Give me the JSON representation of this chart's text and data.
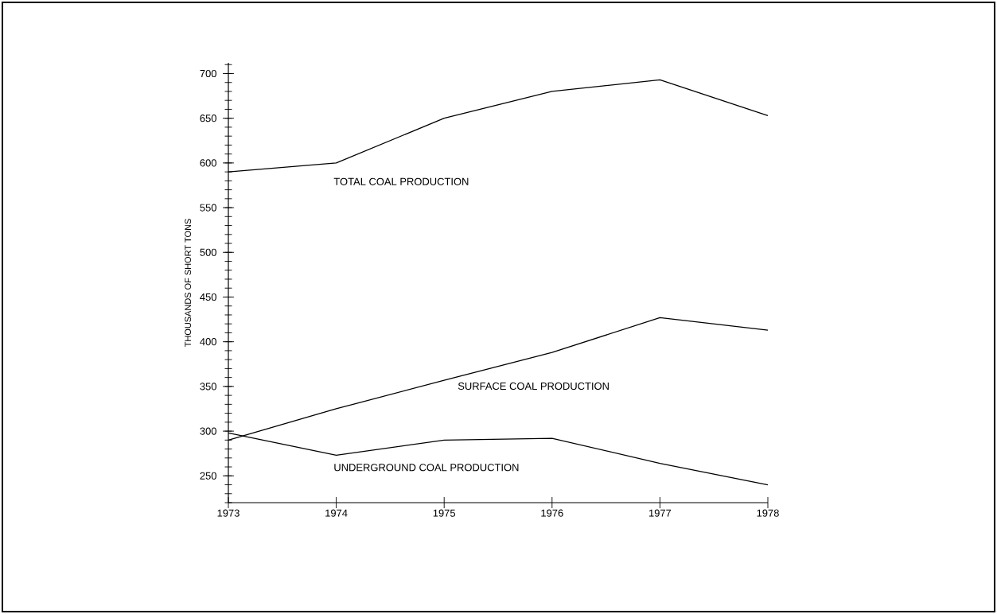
{
  "chart_data": {
    "type": "line",
    "ylabel": "THOUSANDS OF SHORT TONS",
    "x": [
      1973,
      1974,
      1975,
      1976,
      1977,
      1978
    ],
    "xlim": [
      1973,
      1978
    ],
    "xticks": [
      1973,
      1974,
      1975,
      1976,
      1977,
      1978
    ],
    "ylim": [
      220,
      712
    ],
    "yticks": [
      250,
      300,
      350,
      400,
      450,
      500,
      550,
      600,
      650,
      700
    ],
    "grid": false,
    "legend": false,
    "marker": "none",
    "line_style": "solid",
    "series": [
      {
        "name": "TOTAL COAL PRODUCTION",
        "color": "#000000",
        "values": [
          590,
          600,
          650,
          680,
          693,
          653
        ]
      },
      {
        "name": "SURFACE COAL PRODUCTION",
        "color": "#000000",
        "values": [
          290,
          325,
          357,
          388,
          427,
          413
        ]
      },
      {
        "name": "UNDERGROUND COAL PRODUCTION",
        "color": "#000000",
        "values": [
          298,
          273,
          290,
          292,
          264,
          240
        ]
      }
    ]
  }
}
